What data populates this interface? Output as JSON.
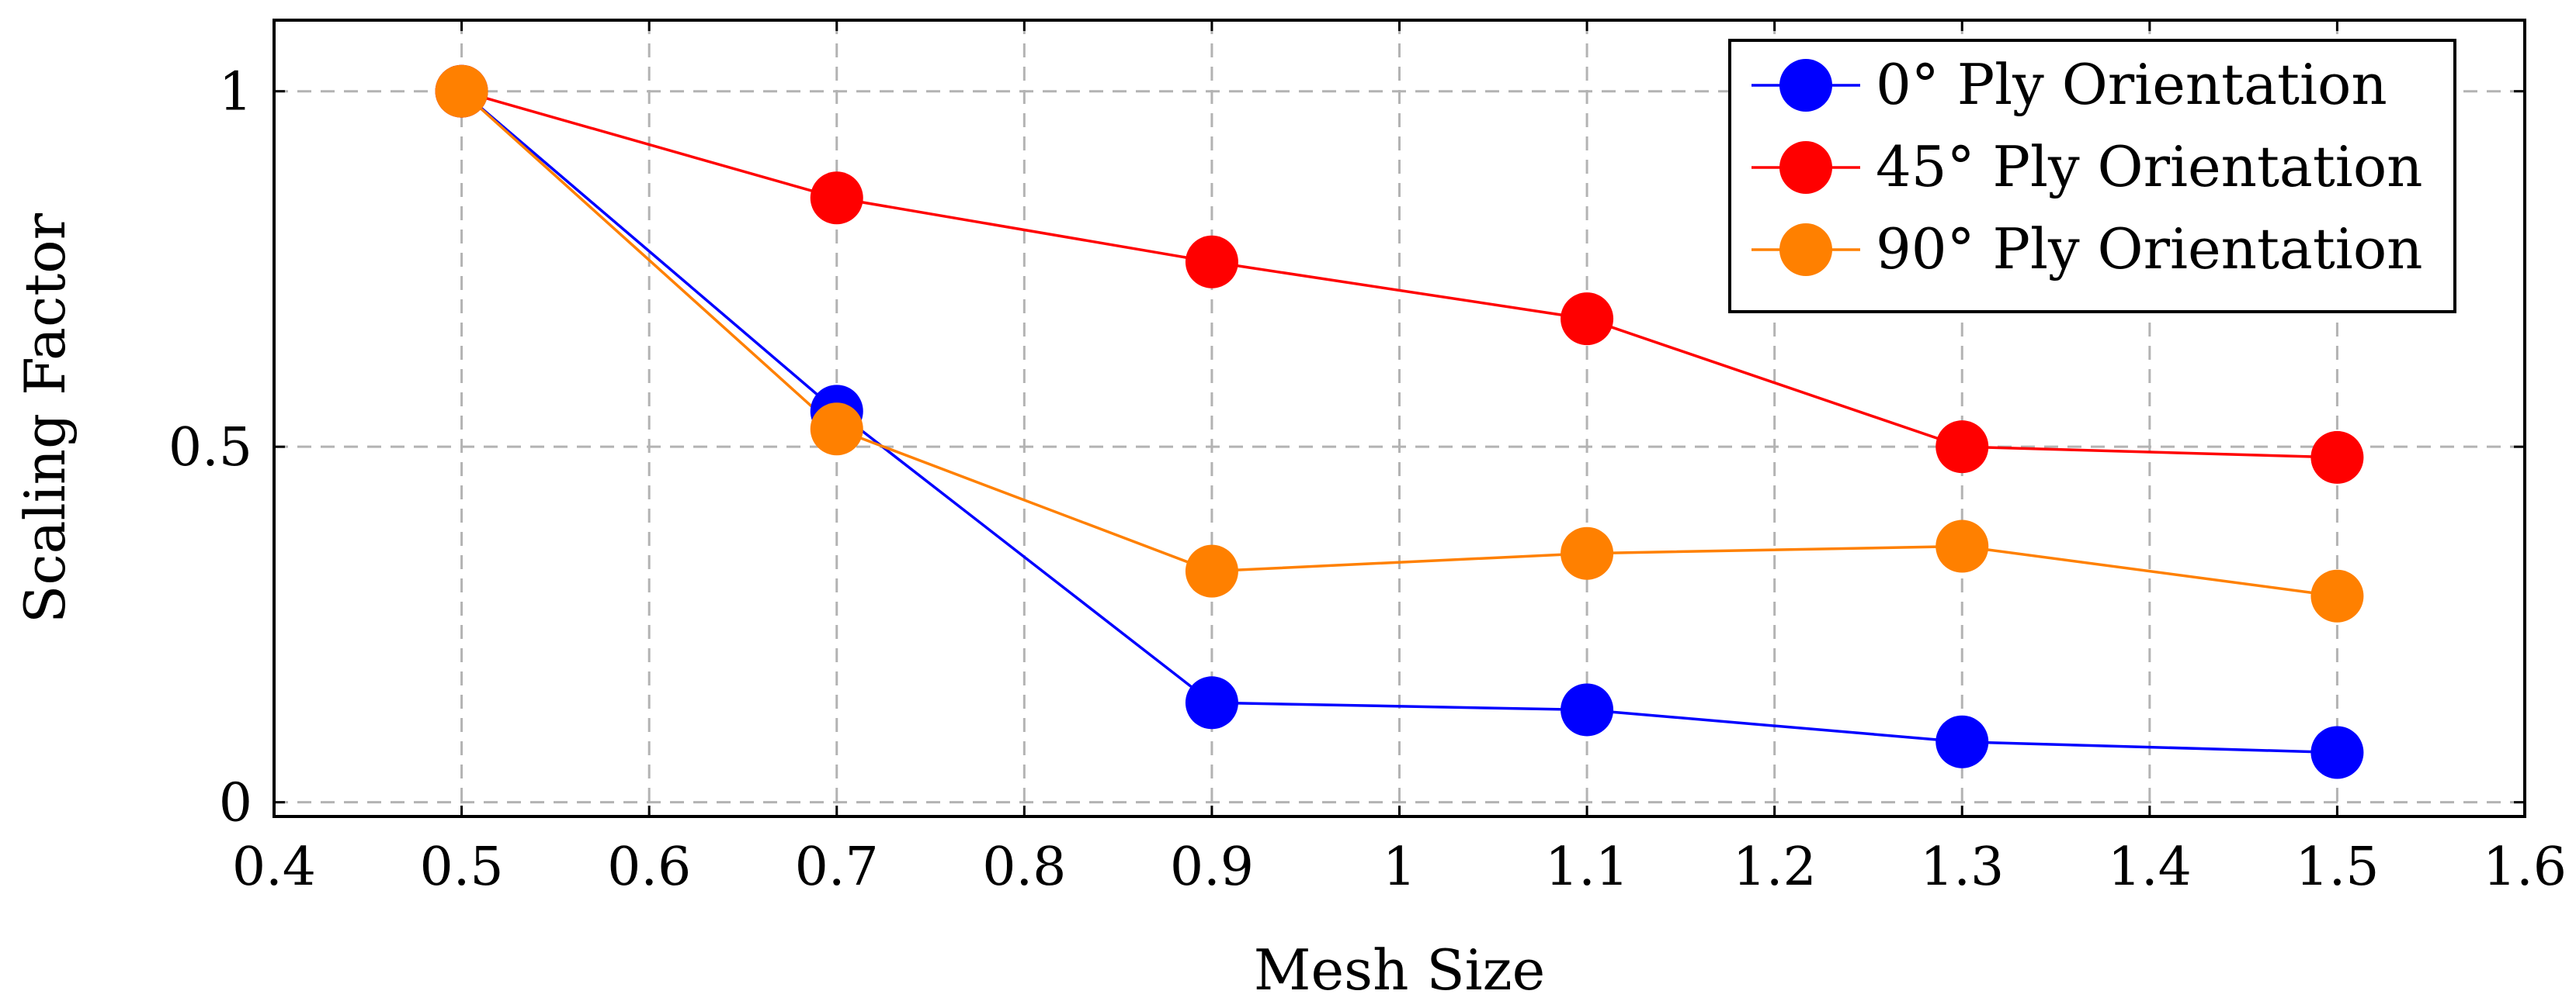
{
  "chart_data": {
    "type": "line",
    "title": "",
    "xlabel": "Mesh Size",
    "ylabel": "Scaling Factor",
    "xlim": [
      0.4,
      1.6
    ],
    "ylim": [
      -0.02,
      1.1
    ],
    "xticks": [
      0.4,
      0.5,
      0.6,
      0.7,
      0.8,
      0.9,
      1,
      1.1,
      1.2,
      1.3,
      1.4,
      1.5,
      1.6
    ],
    "xtick_labels": [
      "0.4",
      "0.5",
      "0.6",
      "0.7",
      "0.8",
      "0.9",
      "1",
      "1.1",
      "1.2",
      "1.3",
      "1.4",
      "1.5",
      "1.6"
    ],
    "yticks": [
      0,
      0.5,
      1
    ],
    "ytick_labels": [
      "0",
      "0.5",
      "1"
    ],
    "grid": true,
    "legend_position": "top-right",
    "x": [
      0.5,
      0.7,
      0.9,
      1.1,
      1.3,
      1.5
    ],
    "series": [
      {
        "name": "0° Ply Orientation",
        "color": "#0000ff",
        "values": [
          1.0,
          0.55,
          0.14,
          0.13,
          0.085,
          0.07
        ]
      },
      {
        "name": "45° Ply Orientation",
        "color": "#ff0000",
        "values": [
          1.0,
          0.85,
          0.76,
          0.68,
          0.5,
          0.485
        ]
      },
      {
        "name": "90° Ply Orientation",
        "color": "#ff8000",
        "values": [
          1.0,
          0.525,
          0.325,
          0.35,
          0.36,
          0.29
        ]
      }
    ]
  }
}
